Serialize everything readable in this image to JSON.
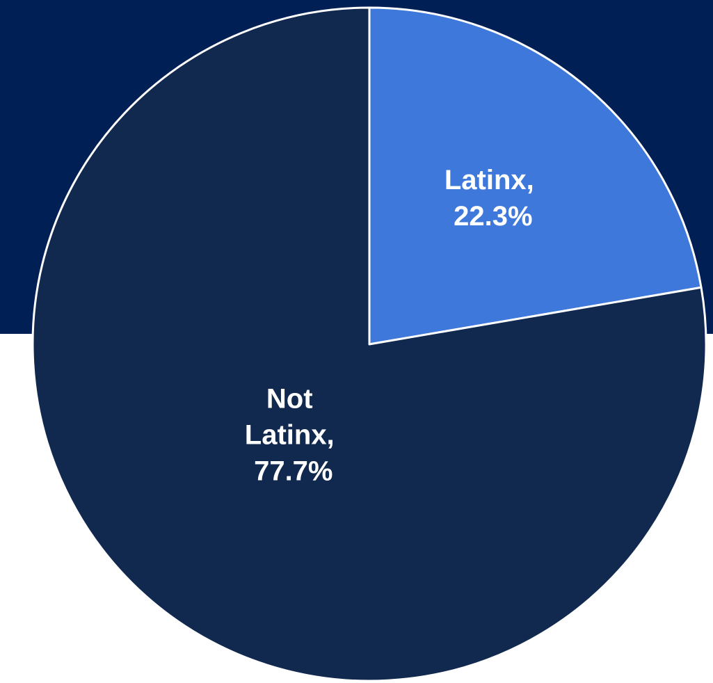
{
  "colors": {
    "banner": "#001F55",
    "background": "#FFFFFF",
    "slice_border": "#FFFFFF"
  },
  "chart_data": {
    "type": "pie",
    "title": "",
    "legend": "none",
    "slices": [
      {
        "label": "Latinx",
        "value": 22.3,
        "color": "#3F78DB",
        "label_lines": [
          "Latinx,",
          "22.3%"
        ]
      },
      {
        "label": "Not Latinx",
        "value": 77.7,
        "color": "#11284F",
        "label_lines": [
          "Not",
          "Latinx,",
          "77.7%"
        ]
      }
    ]
  }
}
